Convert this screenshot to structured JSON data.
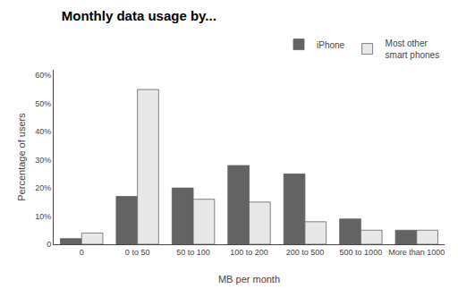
{
  "chart_data": {
    "type": "bar",
    "title": "Monthly data usage by...",
    "xlabel": "MB per month",
    "ylabel": "Percentage of users",
    "categories": [
      "0",
      "0 to 50",
      "50 to 100",
      "100 to 200",
      "200 to 500",
      "500 to 1000",
      "More than 1000"
    ],
    "series": [
      {
        "name": "iPhone",
        "color": "#636363",
        "values": [
          2,
          17,
          20,
          28,
          25,
          9,
          5
        ]
      },
      {
        "name": "Most other\nsmart phones",
        "color": "#e8e8e8",
        "values": [
          4,
          55,
          16,
          15,
          8,
          5,
          5
        ]
      }
    ],
    "ylim": [
      0,
      62
    ],
    "yticks": [
      0,
      {
        "value": 10,
        "label": "10%"
      },
      {
        "value": 20,
        "label": "20%"
      },
      {
        "value": 30,
        "label": "30%"
      },
      {
        "value": 40,
        "label": "40%"
      },
      {
        "value": 50,
        "label": "50%"
      },
      {
        "value": 60,
        "label": "60%"
      }
    ],
    "grid": false,
    "legend": "top right"
  }
}
